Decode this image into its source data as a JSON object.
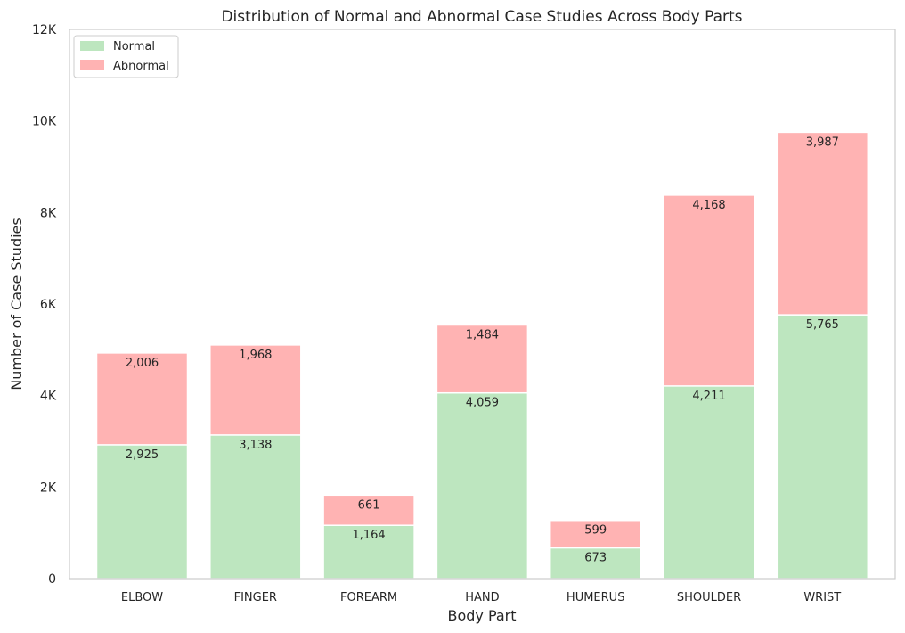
{
  "colors": {
    "normal": "#bde6bf",
    "abnormal": "#ffb3b3",
    "frame": "#cccccc",
    "bar_edge": "#ffffff",
    "text": "#262626"
  },
  "chart_data": {
    "type": "bar",
    "stacked": true,
    "title": "Distribution of Normal and Abnormal Case Studies Across Body Parts",
    "xlabel": "Body Part",
    "ylabel": "Number of Case Studies",
    "categories": [
      "ELBOW",
      "FINGER",
      "FOREARM",
      "HAND",
      "HUMERUS",
      "SHOULDER",
      "WRIST"
    ],
    "series": [
      {
        "name": "Normal",
        "values": [
          2925,
          3138,
          1164,
          4059,
          673,
          4211,
          5765
        ],
        "labels": [
          "2,925",
          "3,138",
          "1,164",
          "4,059",
          "673",
          "4,211",
          "5,765"
        ]
      },
      {
        "name": "Abnormal",
        "values": [
          2006,
          1968,
          661,
          1484,
          599,
          4168,
          3987
        ],
        "labels": [
          "2,006",
          "1,968",
          "661",
          "1,484",
          "599",
          "4,168",
          "3,987"
        ]
      }
    ],
    "ylim": [
      0,
      12000
    ],
    "yticks": [
      0,
      2000,
      4000,
      6000,
      8000,
      10000,
      12000
    ],
    "ytick_labels": [
      "0",
      "2K",
      "4K",
      "6K",
      "8K",
      "10K",
      "12K"
    ],
    "grid": false,
    "legend_position": "top-left"
  }
}
